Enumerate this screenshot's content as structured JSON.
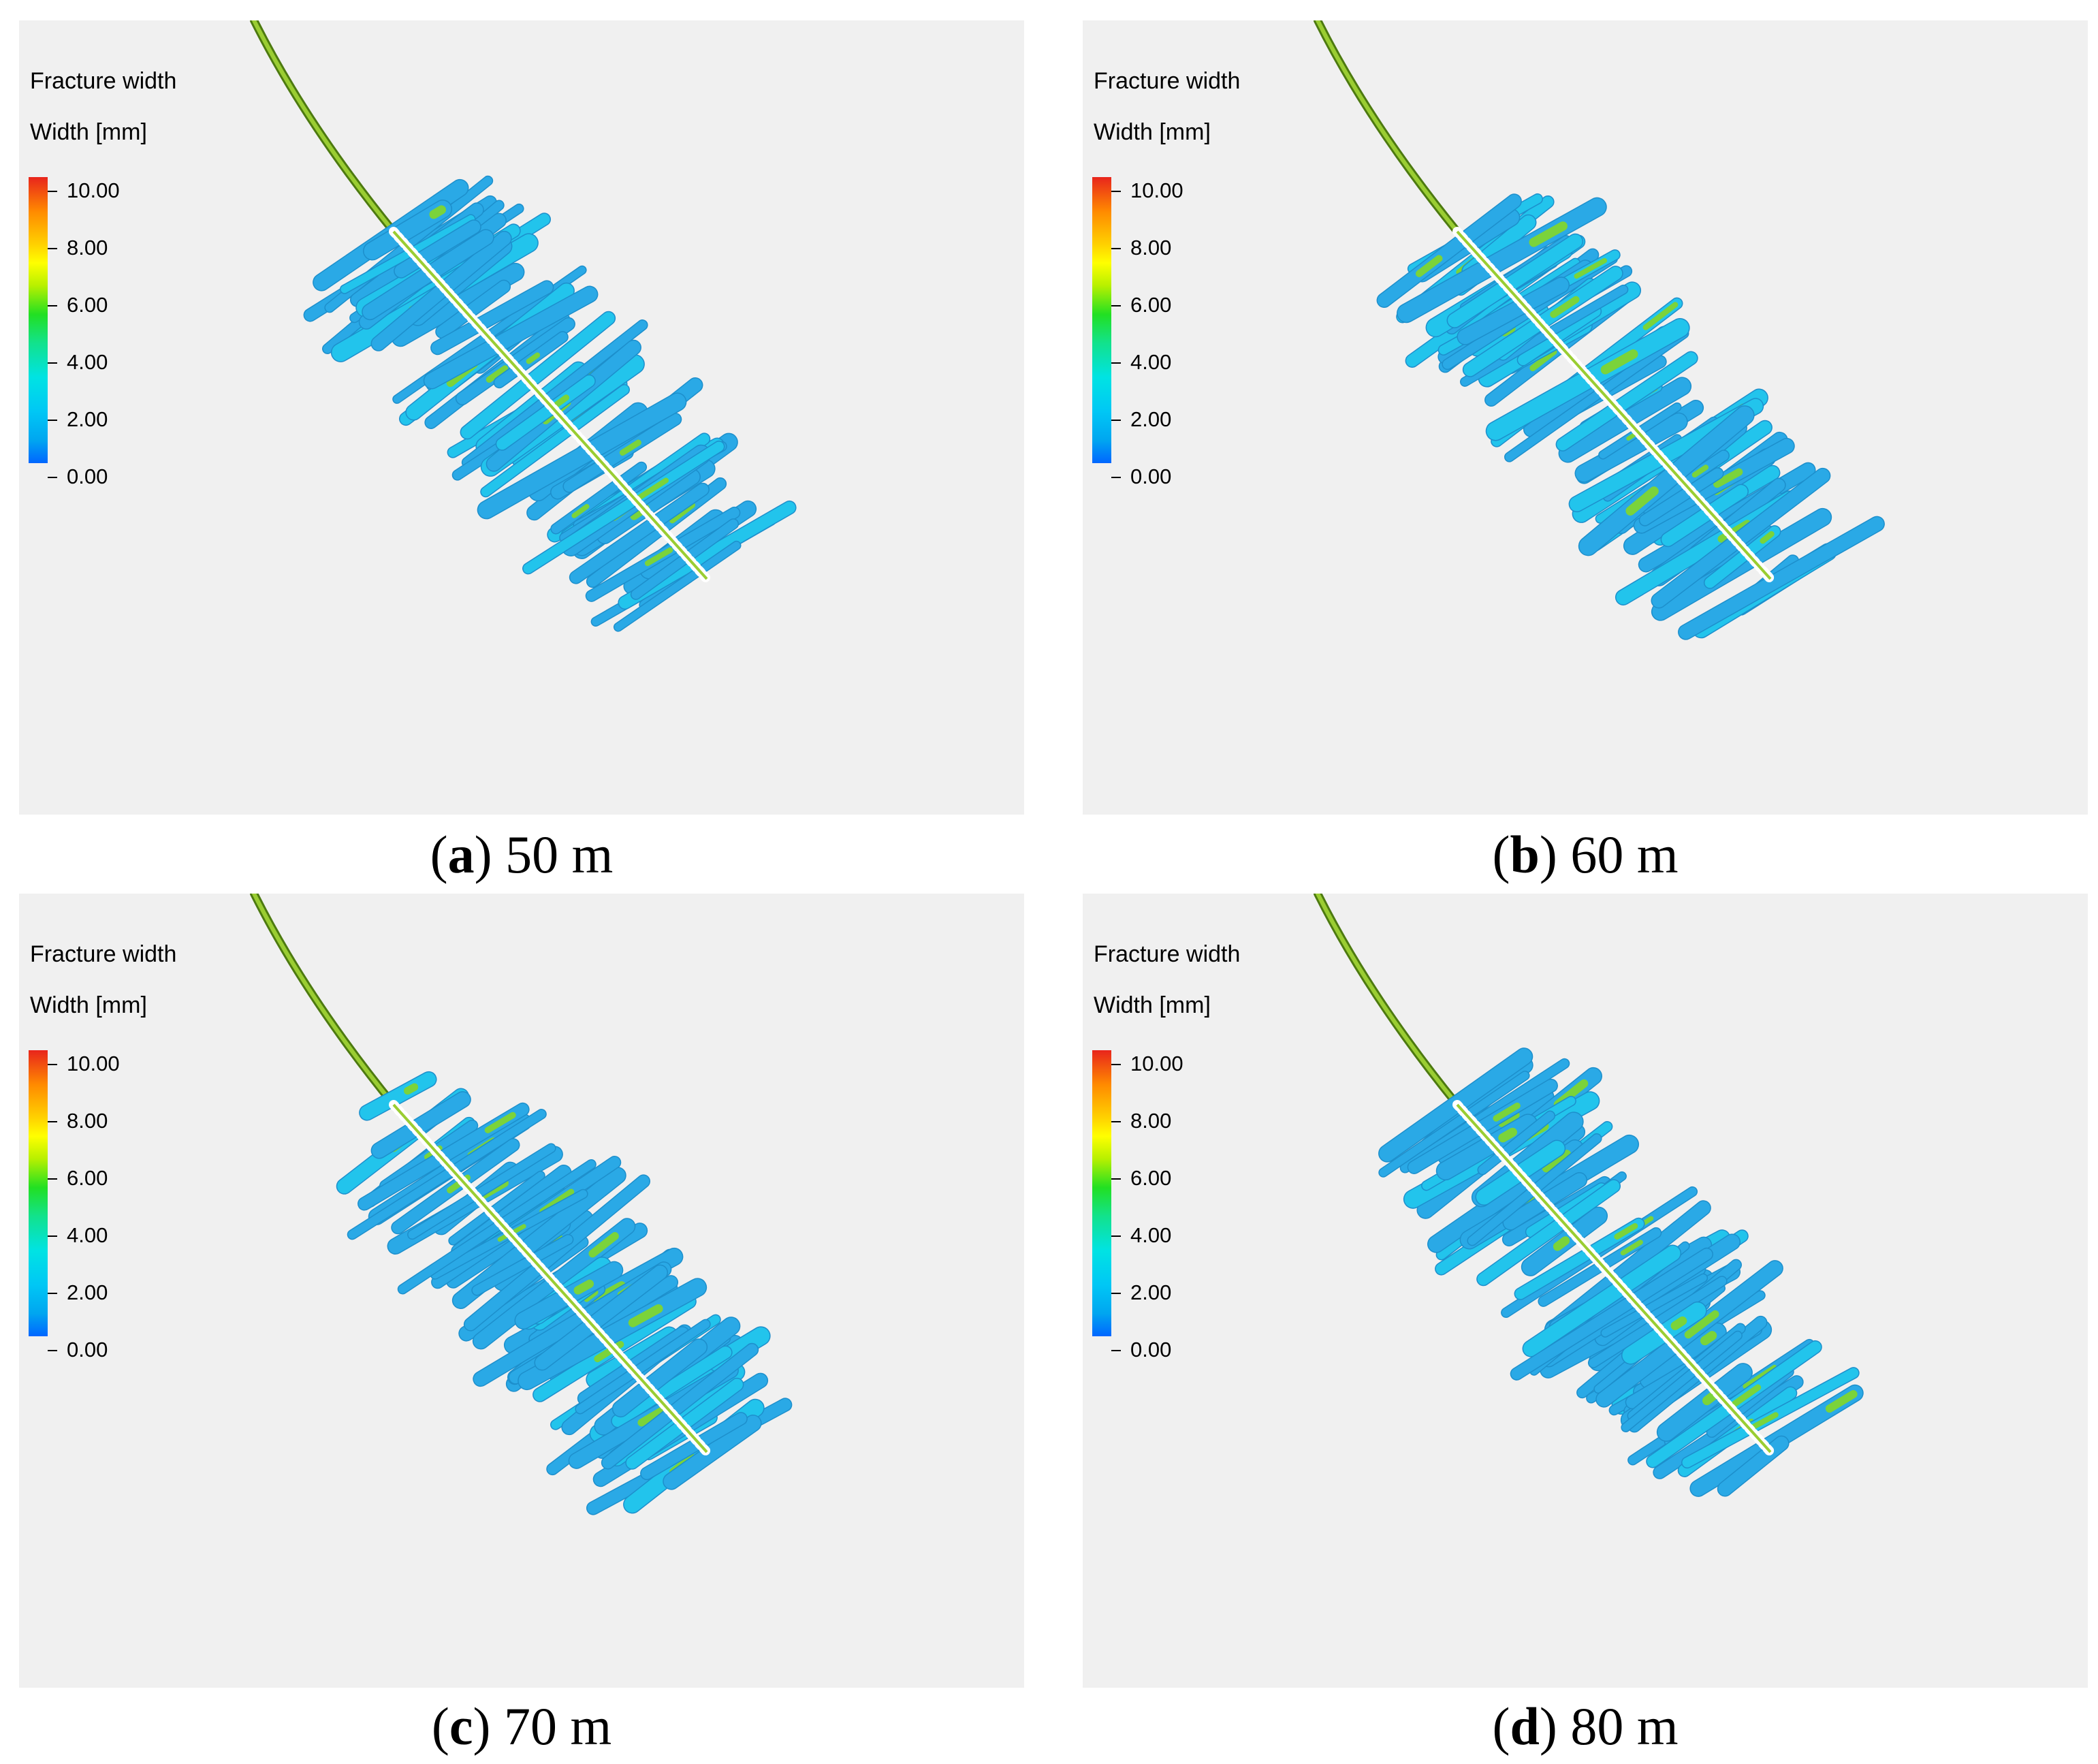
{
  "legend": {
    "title": "Fracture width",
    "subtitle": "Width [mm]",
    "ticks": [
      "10.00",
      "8.00",
      "6.00",
      "4.00",
      "2.00",
      "0.00"
    ]
  },
  "panels": [
    {
      "letter": "a",
      "label": "50 m"
    },
    {
      "letter": "b",
      "label": "60 m"
    },
    {
      "letter": "c",
      "label": "70 m"
    },
    {
      "letter": "d",
      "label": "80 m"
    }
  ],
  "colors": {
    "background": "#f0f0f0",
    "fracture_main": "#2aa9e6",
    "fracture_light": "#22c4ec",
    "fracture_accent": "#7bd33a",
    "wellbore": "#9acd32"
  }
}
